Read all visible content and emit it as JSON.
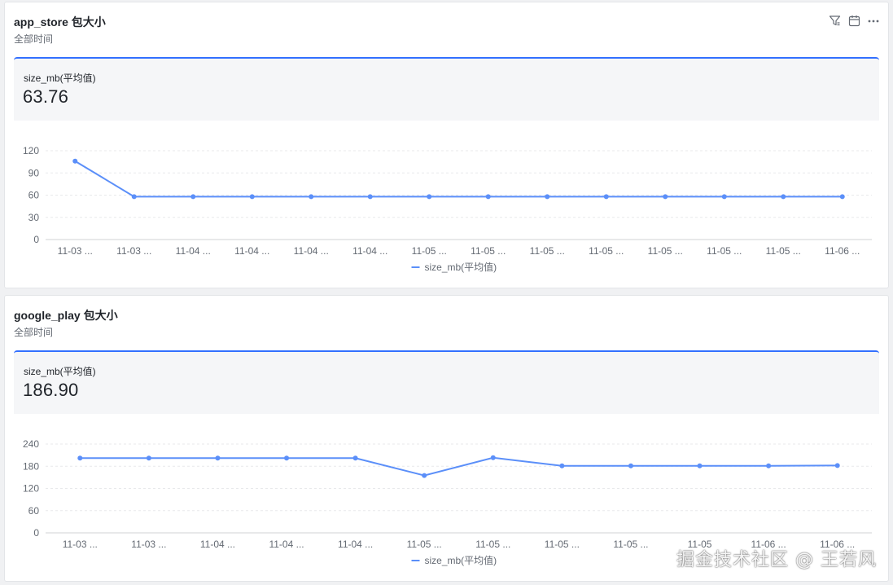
{
  "colors": {
    "accent": "#3370ff",
    "line": "#5b8ff9",
    "grid": "#e8e9eb",
    "axis_text": "#646a73"
  },
  "toolbar_icons": [
    "filter-icon",
    "calendar-icon",
    "more-icon"
  ],
  "cards": [
    {
      "title": "app_store 包大小",
      "subtitle": "全部时间",
      "metric": {
        "label": "size_mb(平均值)",
        "value": "63.76"
      }
    },
    {
      "title": "google_play 包大小",
      "subtitle": "全部时间",
      "metric": {
        "label": "size_mb(平均值)",
        "value": "186.90"
      }
    }
  ],
  "chart_data": [
    {
      "type": "line",
      "categories": [
        "11-03 ...",
        "11-03 ...",
        "11-04 ...",
        "11-04 ...",
        "11-04 ...",
        "11-04 ...",
        "11-05 ...",
        "11-05 ...",
        "11-05 ...",
        "11-05 ...",
        "11-05 ...",
        "11-05 ...",
        "11-05 ...",
        "11-06 ..."
      ],
      "series": [
        {
          "name": "size_mb(平均值)",
          "values": [
            106,
            58,
            58,
            58,
            58,
            58,
            58,
            58,
            58,
            58,
            58,
            58,
            58,
            58
          ]
        }
      ],
      "yticks": [
        0,
        30,
        60,
        90,
        120
      ],
      "ylim": [
        0,
        120
      ],
      "grid": true,
      "legend": "bottom"
    },
    {
      "type": "line",
      "categories": [
        "11-03 ...",
        "11-03 ...",
        "11-04 ...",
        "11-04 ...",
        "11-04 ...",
        "11-05 ...",
        "11-05 ...",
        "11-05 ...",
        "11-05 ...",
        "11-05",
        "11-06 ...",
        "11-06 ..."
      ],
      "series": [
        {
          "name": "size_mb(平均值)",
          "values": [
            202,
            202,
            202,
            202,
            202,
            155,
            203,
            181,
            181,
            181,
            181,
            182
          ]
        }
      ],
      "yticks": [
        0,
        60,
        120,
        180,
        240
      ],
      "ylim": [
        0,
        240
      ],
      "grid": true,
      "legend": "bottom"
    }
  ],
  "watermark": "掘金技术社区 @ 王若风"
}
